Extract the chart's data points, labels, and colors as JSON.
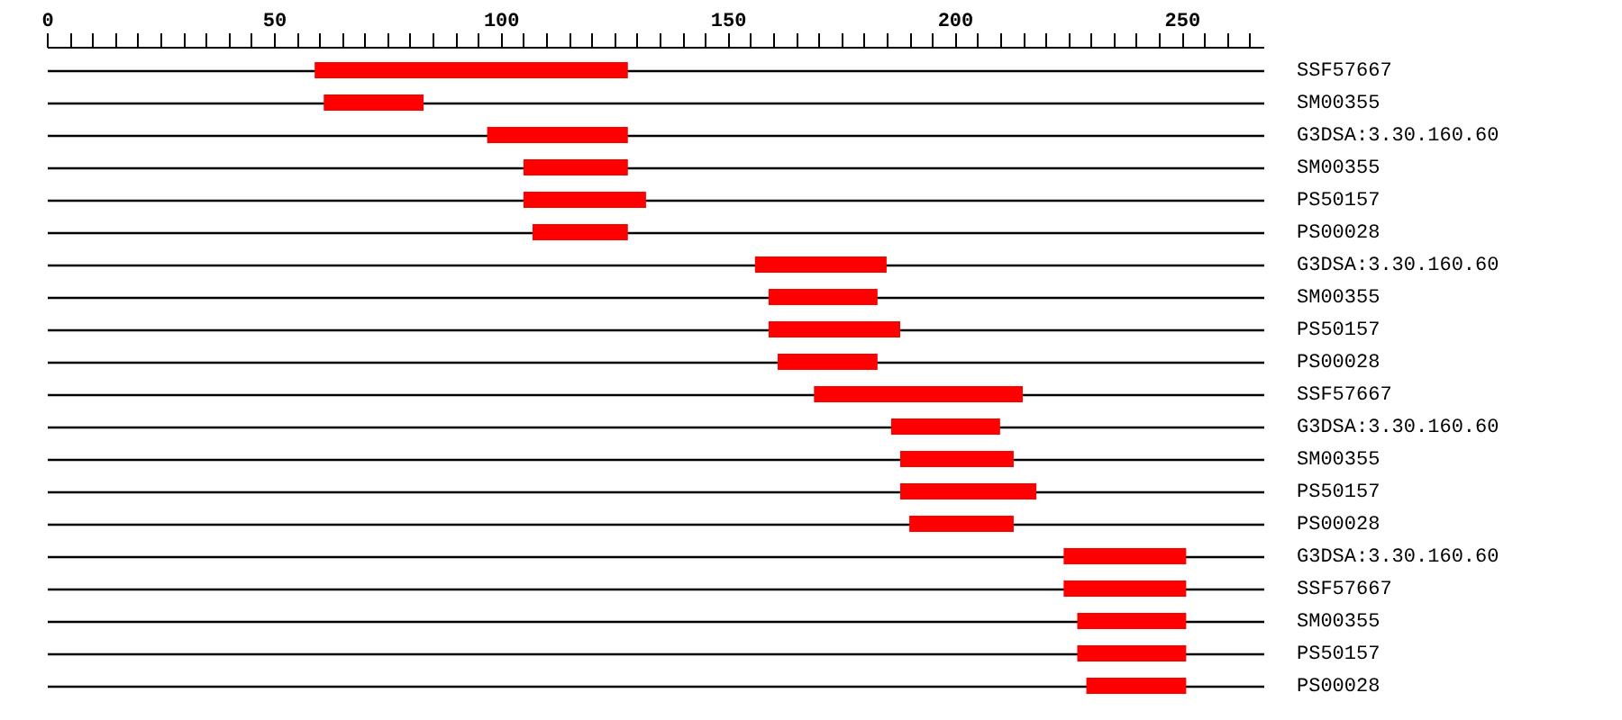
{
  "chart_data": {
    "type": "bar",
    "orientation": "horizontal",
    "grid": "y",
    "categories": [
      "SSF57667",
      "SM00355",
      "G3DSA:3.30.160.60",
      "SM00355",
      "PS50157",
      "PS00028",
      "G3DSA:3.30.160.60",
      "SM00355",
      "PS50157",
      "PS00028",
      "SSF57667",
      "G3DSA:3.30.160.60",
      "SM00355",
      "PS50157",
      "PS00028",
      "G3DSA:3.30.160.60",
      "SSF57667",
      "SM00355",
      "PS50157",
      "PS00028"
    ],
    "base": [
      59,
      61,
      97,
      105,
      105,
      107,
      156,
      159,
      159,
      161,
      169,
      186,
      188,
      188,
      190,
      224,
      224,
      227,
      227,
      229
    ],
    "values": [
      69,
      22,
      31,
      23,
      27,
      21,
      29,
      24,
      29,
      22,
      46,
      24,
      25,
      30,
      23,
      27,
      27,
      24,
      24,
      22
    ],
    "color": "#ff0000",
    "xlim": [
      0,
      268
    ],
    "xticks": [
      0,
      {
        "value": 5,
        "label": null
      },
      {
        "value": 10,
        "label": null
      },
      {
        "value": 15,
        "label": null
      },
      {
        "value": 20,
        "label": null
      },
      {
        "value": 25,
        "label": null
      },
      {
        "value": 30,
        "label": null
      },
      {
        "value": 35,
        "label": null
      },
      {
        "value": 40,
        "label": null
      },
      {
        "value": 45,
        "label": null
      },
      50,
      {
        "value": 55,
        "label": null
      },
      {
        "value": 60,
        "label": null
      },
      {
        "value": 65,
        "label": null
      },
      {
        "value": 70,
        "label": null
      },
      {
        "value": 75,
        "label": null
      },
      {
        "value": 80,
        "label": null
      },
      {
        "value": 85,
        "label": null
      },
      {
        "value": 90,
        "label": null
      },
      {
        "value": 95,
        "label": null
      },
      100,
      {
        "value": 105,
        "label": null
      },
      {
        "value": 110,
        "label": null
      },
      {
        "value": 115,
        "label": null
      },
      {
        "value": 120,
        "label": null
      },
      {
        "value": 125,
        "label": null
      },
      {
        "value": 130,
        "label": null
      },
      {
        "value": 135,
        "label": null
      },
      {
        "value": 140,
        "label": null
      },
      {
        "value": 145,
        "label": null
      },
      150,
      {
        "value": 155,
        "label": null
      },
      {
        "value": 160,
        "label": null
      },
      {
        "value": 165,
        "label": null
      },
      {
        "value": 170,
        "label": null
      },
      {
        "value": 175,
        "label": null
      },
      {
        "value": 180,
        "label": null
      },
      {
        "value": 185,
        "label": null
      },
      {
        "value": 190,
        "label": null
      },
      {
        "value": 195,
        "label": null
      },
      200,
      {
        "value": 205,
        "label": null
      },
      {
        "value": 210,
        "label": null
      },
      {
        "value": 215,
        "label": null
      },
      {
        "value": 220,
        "label": null
      },
      {
        "value": 225,
        "label": null
      },
      {
        "value": 230,
        "label": null
      },
      {
        "value": 235,
        "label": null
      },
      {
        "value": 240,
        "label": null
      },
      {
        "value": 245,
        "label": null
      },
      250,
      {
        "value": 255,
        "label": null
      },
      {
        "value": 260,
        "label": null
      },
      {
        "value": 265,
        "label": null
      }
    ]
  }
}
